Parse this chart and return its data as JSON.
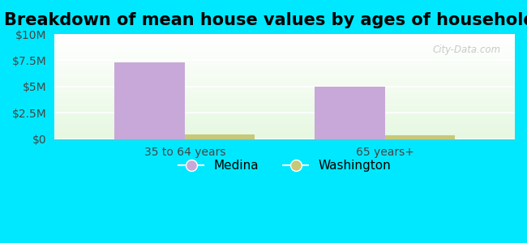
{
  "title": "Breakdown of mean house values by ages of householders",
  "categories": [
    "35 to 64 years",
    "65 years+"
  ],
  "series": {
    "Medina": [
      7300000,
      5000000
    ],
    "Washington": [
      400000,
      350000
    ]
  },
  "bar_colors": {
    "Medina": "#c8a8d8",
    "Washington": "#c8c878"
  },
  "ylim": [
    0,
    10000000
  ],
  "yticks": [
    0,
    2500000,
    5000000,
    7500000,
    10000000
  ],
  "ytick_labels": [
    "$0",
    "$2.5M",
    "$5M",
    "$7.5M",
    "$10M"
  ],
  "background_outer": "#00e8ff",
  "watermark": "City-Data.com",
  "bar_width": 0.35,
  "title_fontsize": 15,
  "tick_fontsize": 10,
  "legend_fontsize": 11
}
